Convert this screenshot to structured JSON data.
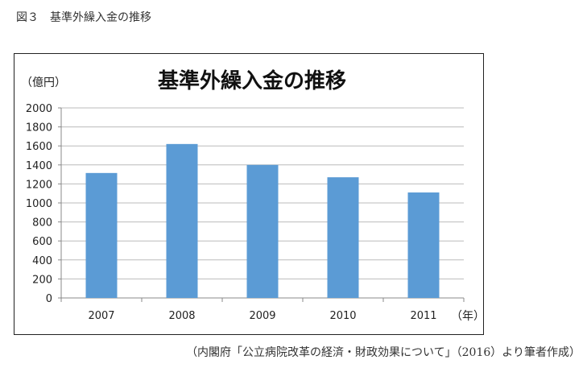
{
  "caption": "図３　基準外繰入金の推移",
  "source": "（内閣府「公立病院改革の経済・財政効果について」（2016）より筆者作成）",
  "chart_data": {
    "type": "bar",
    "title": "基準外繰入金の推移",
    "ylabel": "（億円）",
    "xlabel": "（年）",
    "categories": [
      "2007",
      "2008",
      "2009",
      "2010",
      "2011"
    ],
    "values": [
      1315,
      1620,
      1400,
      1270,
      1110
    ],
    "ylim": [
      0,
      2000
    ],
    "yticks": [
      0,
      200,
      400,
      600,
      800,
      1000,
      1200,
      1400,
      1600,
      1800,
      2000
    ],
    "grid": true,
    "bar_color": "#5b9bd5"
  }
}
